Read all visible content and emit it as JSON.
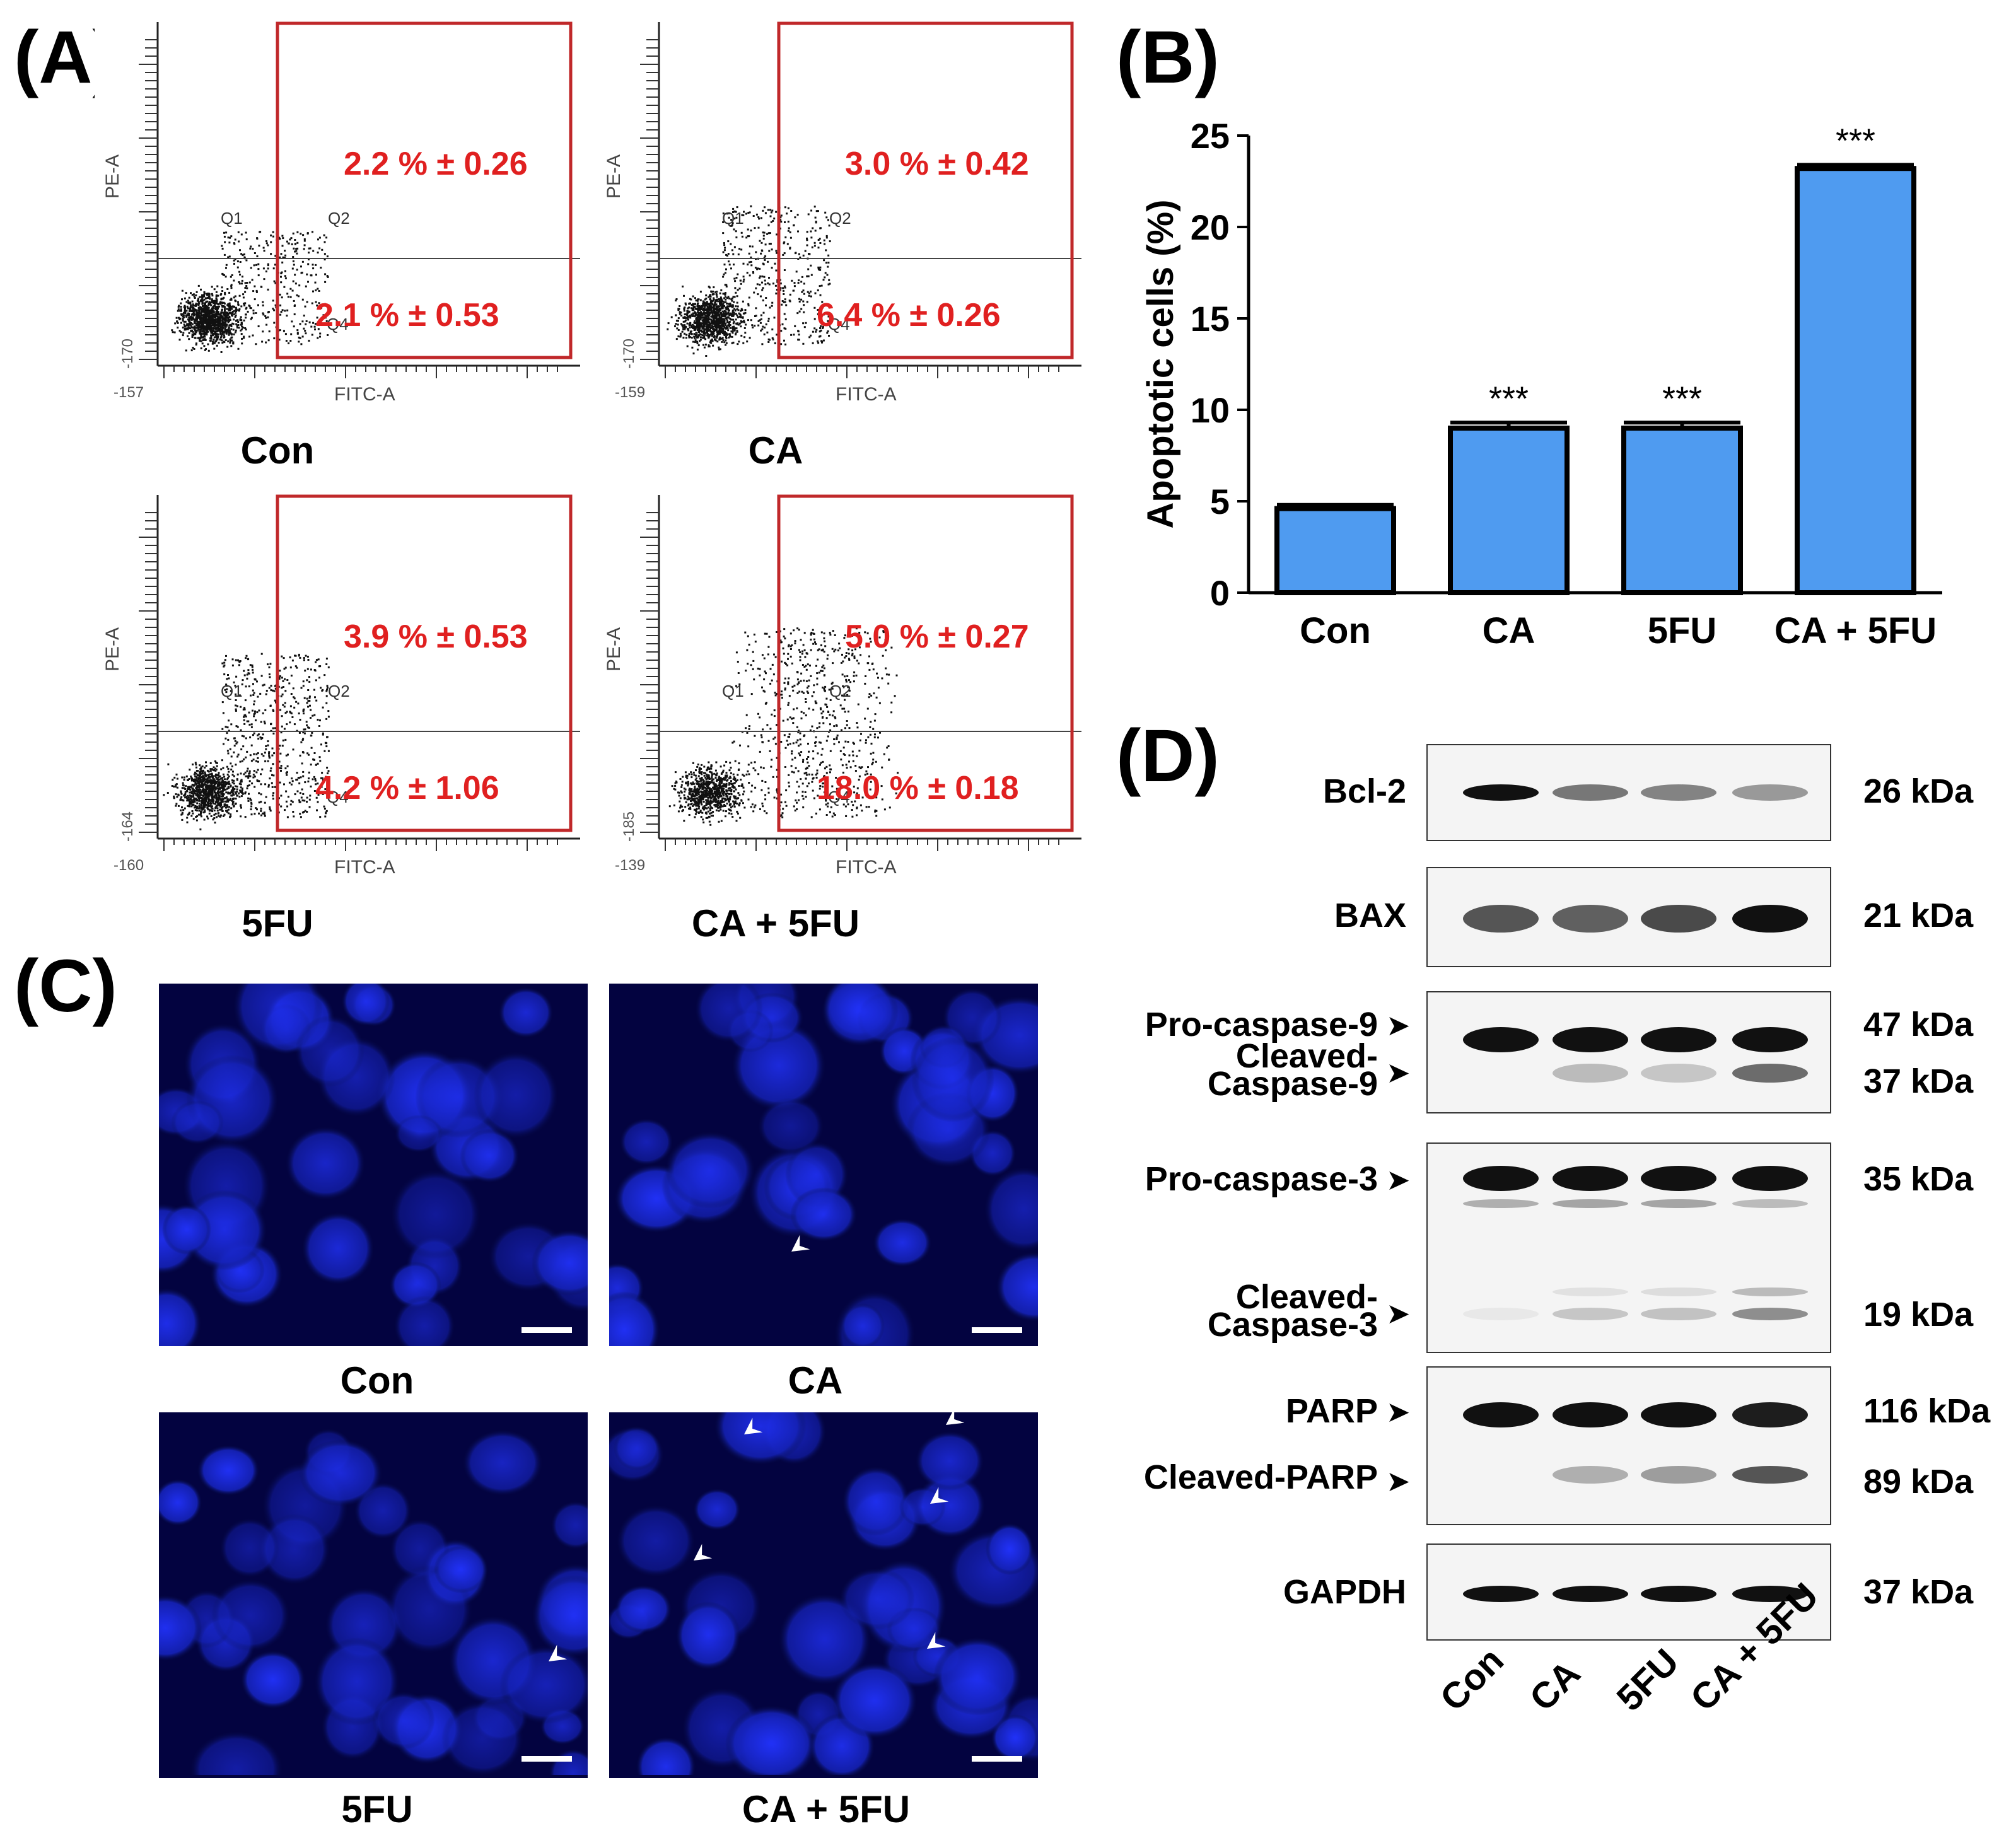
{
  "panels": {
    "a": "(A)",
    "b": "(B)",
    "c": "(C)",
    "d": "(D)"
  },
  "flow": {
    "x_axis_label": "FITC-A",
    "y_axis_label": "PE-A",
    "quadrants": [
      "Q1",
      "Q2",
      "Q4"
    ],
    "plots": [
      {
        "name": "Con",
        "upper": "2.2 % ± 0.26",
        "lower": "2.1 % ± 0.53",
        "xmin": "-157",
        "ymin": "-170"
      },
      {
        "name": "CA",
        "upper": "3.0 % ± 0.42",
        "lower": "6.4 % ± 0.26",
        "xmin": "-159",
        "ymin": "-170"
      },
      {
        "name": "5FU",
        "upper": "3.9 % ± 0.53",
        "lower": "4.2 % ± 1.06",
        "xmin": "-160",
        "ymin": "-164"
      },
      {
        "name": "CA + 5FU",
        "upper": "5.0 % ± 0.27",
        "lower": "18.0 % ± 0.18",
        "xmin": "-139",
        "ymin": "-185"
      }
    ]
  },
  "chart_data": {
    "type": "bar",
    "title": "",
    "xlabel": "",
    "ylabel": "Apoptotic cells (%)",
    "ylim": [
      0,
      25
    ],
    "yticks": [
      "0",
      "5",
      "10",
      "15",
      "20",
      "25"
    ],
    "categories": [
      "Con",
      "CA",
      "5FU",
      "CA + 5FU"
    ],
    "values": [
      4.6,
      9.0,
      9.0,
      23.2
    ],
    "errors": [
      0.2,
      0.3,
      0.3,
      0.2
    ],
    "significance": [
      "",
      "***",
      "***",
      "***"
    ],
    "bar_color": "#4f9bf0"
  },
  "micro": {
    "labels": [
      "Con",
      "CA",
      "5FU",
      "CA + 5FU"
    ]
  },
  "western": {
    "rows": [
      {
        "label": "Bcl-2",
        "kda": "26 kDa"
      },
      {
        "label": "BAX",
        "kda": "21 kDa"
      },
      {
        "label": "Pro-caspase-9",
        "kda": "47 kDa",
        "sub": "Cleaved-\nCaspase-9",
        "sub_kda": "37 kDa"
      },
      {
        "label": "Pro-caspase-3",
        "kda": "35 kDa",
        "sub": "Cleaved-\nCaspase-3",
        "sub_kda": "19 kDa"
      },
      {
        "label": "PARP",
        "kda": "116 kDa",
        "sub": "Cleaved-PARP",
        "sub_kda": "89 kDa"
      },
      {
        "label": "GAPDH",
        "kda": "37 kDa"
      }
    ],
    "lanes": [
      "Con",
      "CA",
      "5FU",
      "CA + 5FU"
    ]
  },
  "colors": {
    "gate": "#c0282a",
    "value": "#e02020",
    "bar": "#4f9bf0",
    "nucleus": "#1a2bd6"
  }
}
